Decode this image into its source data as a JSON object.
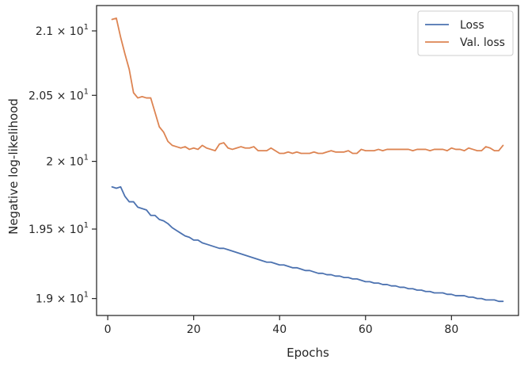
{
  "chart_data": {
    "type": "line",
    "title": "",
    "xlabel": "Epochs",
    "ylabel": "Negative log-likelihood",
    "y_scale": "log",
    "xlim": [
      -2.6,
      95.6
    ],
    "ylim": [
      18.88,
      21.2
    ],
    "x_ticks": [
      0,
      20,
      40,
      60,
      80
    ],
    "y_ticks": [
      {
        "value": 19.0,
        "mantissa": "1.9",
        "base": "10",
        "exponent": "1"
      },
      {
        "value": 19.5,
        "mantissa": "1.95",
        "base": "10",
        "exponent": "1"
      },
      {
        "value": 20.0,
        "mantissa": "2",
        "base": "10",
        "exponent": "1"
      },
      {
        "value": 20.5,
        "mantissa": "2.05",
        "base": "10",
        "exponent": "1"
      },
      {
        "value": 21.0,
        "mantissa": "2.1",
        "base": "10",
        "exponent": "1"
      }
    ],
    "grid": false,
    "legend_position": "top-right",
    "series": [
      {
        "name": "Loss",
        "color": "#4c72b0",
        "x": [
          1,
          2,
          3,
          4,
          5,
          6,
          7,
          8,
          9,
          10,
          11,
          12,
          13,
          14,
          15,
          16,
          17,
          18,
          19,
          20,
          21,
          22,
          23,
          24,
          25,
          26,
          27,
          28,
          29,
          30,
          31,
          32,
          33,
          34,
          35,
          36,
          37,
          38,
          39,
          40,
          41,
          42,
          43,
          44,
          45,
          46,
          47,
          48,
          49,
          50,
          51,
          52,
          53,
          54,
          55,
          56,
          57,
          58,
          59,
          60,
          61,
          62,
          63,
          64,
          65,
          66,
          67,
          68,
          69,
          70,
          71,
          72,
          73,
          74,
          75,
          76,
          77,
          78,
          79,
          80,
          81,
          82,
          83,
          84,
          85,
          86,
          87,
          88,
          89,
          90,
          91,
          92
        ],
        "values": [
          19.81,
          19.8,
          19.81,
          19.74,
          19.7,
          19.7,
          19.66,
          19.65,
          19.64,
          19.6,
          19.6,
          19.57,
          19.56,
          19.54,
          19.51,
          19.49,
          19.47,
          19.45,
          19.44,
          19.42,
          19.42,
          19.4,
          19.39,
          19.38,
          19.37,
          19.36,
          19.36,
          19.35,
          19.34,
          19.33,
          19.32,
          19.31,
          19.3,
          19.29,
          19.28,
          19.27,
          19.26,
          19.26,
          19.25,
          19.24,
          19.24,
          19.23,
          19.22,
          19.22,
          19.21,
          19.2,
          19.2,
          19.19,
          19.18,
          19.18,
          19.17,
          19.17,
          19.16,
          19.16,
          19.15,
          19.15,
          19.14,
          19.14,
          19.13,
          19.12,
          19.12,
          19.11,
          19.11,
          19.1,
          19.1,
          19.09,
          19.09,
          19.08,
          19.08,
          19.07,
          19.07,
          19.06,
          19.06,
          19.05,
          19.05,
          19.04,
          19.04,
          19.04,
          19.03,
          19.03,
          19.02,
          19.02,
          19.02,
          19.01,
          19.01,
          19.0,
          19.0,
          18.99,
          18.99,
          18.99,
          18.98,
          18.98
        ]
      },
      {
        "name": "Val. loss",
        "color": "#dd8452",
        "x": [
          1,
          2,
          3,
          4,
          5,
          6,
          7,
          8,
          9,
          10,
          11,
          12,
          13,
          14,
          15,
          16,
          17,
          18,
          19,
          20,
          21,
          22,
          23,
          24,
          25,
          26,
          27,
          28,
          29,
          30,
          31,
          32,
          33,
          34,
          35,
          36,
          37,
          38,
          39,
          40,
          41,
          42,
          43,
          44,
          45,
          46,
          47,
          48,
          49,
          50,
          51,
          52,
          53,
          54,
          55,
          56,
          57,
          58,
          59,
          60,
          61,
          62,
          63,
          64,
          65,
          66,
          67,
          68,
          69,
          70,
          71,
          72,
          73,
          74,
          75,
          76,
          77,
          78,
          79,
          80,
          81,
          82,
          83,
          84,
          85,
          86,
          87,
          88,
          89,
          90,
          91,
          92
        ],
        "values": [
          21.09,
          21.1,
          20.95,
          20.82,
          20.7,
          20.52,
          20.48,
          20.49,
          20.48,
          20.48,
          20.37,
          20.26,
          20.22,
          20.15,
          20.12,
          20.11,
          20.1,
          20.11,
          20.09,
          20.1,
          20.09,
          20.12,
          20.1,
          20.09,
          20.08,
          20.13,
          20.14,
          20.1,
          20.09,
          20.1,
          20.11,
          20.1,
          20.1,
          20.11,
          20.08,
          20.08,
          20.08,
          20.1,
          20.08,
          20.06,
          20.06,
          20.07,
          20.06,
          20.07,
          20.06,
          20.06,
          20.06,
          20.07,
          20.06,
          20.06,
          20.07,
          20.08,
          20.07,
          20.07,
          20.07,
          20.08,
          20.06,
          20.06,
          20.09,
          20.08,
          20.08,
          20.08,
          20.09,
          20.08,
          20.09,
          20.09,
          20.09,
          20.09,
          20.09,
          20.09,
          20.08,
          20.09,
          20.09,
          20.09,
          20.08,
          20.09,
          20.09,
          20.09,
          20.08,
          20.1,
          20.09,
          20.09,
          20.08,
          20.1,
          20.09,
          20.08,
          20.08,
          20.11,
          20.1,
          20.08,
          20.08,
          20.12
        ]
      }
    ]
  }
}
